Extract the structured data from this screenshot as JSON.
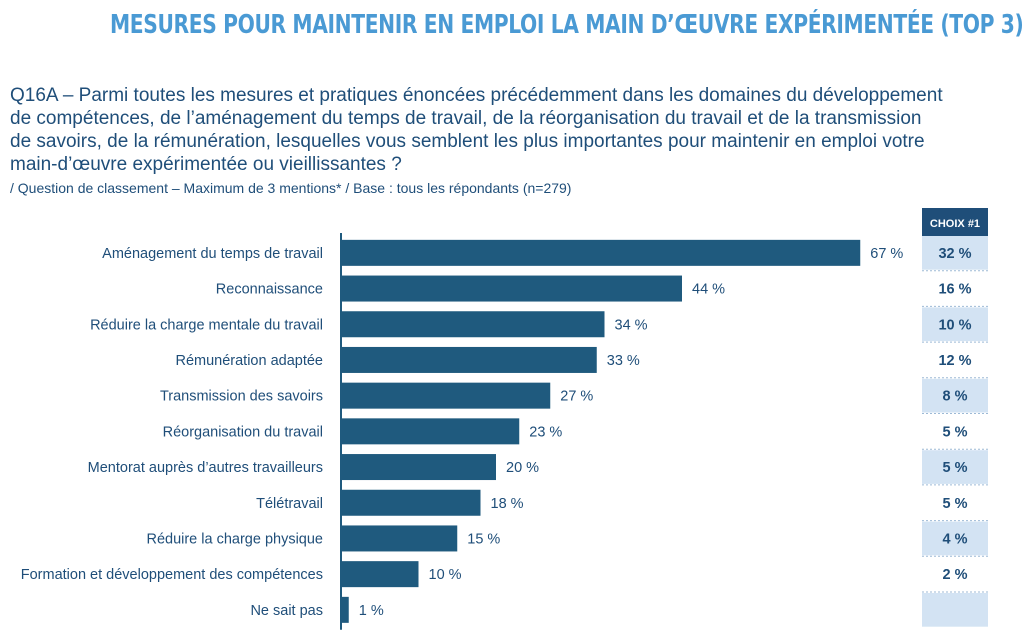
{
  "title": "MESURES POUR MAINTENIR EN EMPLOI LA MAIN D’ŒUVRE EXPÉRIMENTÉE (TOP 3)",
  "question": {
    "lines": [
      "Q16A – Parmi toutes les mesures et pratiques énoncées précédemment dans les domaines du développement",
      "de compétences, de l’aménagement du temps de travail, de la réorganisation du travail et de la transmission",
      "de savoirs, de la rémunération,  lesquelles vous semblent les plus importantes pour maintenir en emploi votre",
      "main-d’œuvre expérimentée ou vieillissantes ?"
    ],
    "note": "/ Question de classement – Maximum de 3 mentions* / Base : tous les répondants (n=279)"
  },
  "colors": {
    "bar": "#1f5a7e",
    "text": "#1f4e79",
    "header_bg": "#1f4e79",
    "choix_shade": "#d3e3f3"
  },
  "chart_data": {
    "type": "bar",
    "orientation": "horizontal",
    "value_unit": "%",
    "categories": [
      "Aménagement du temps de travail",
      "Reconnaissance",
      "Réduire la charge mentale du travail",
      "Rémunération adaptée",
      "Transmission des savoirs",
      "Réorganisation du travail",
      "Mentorat auprès d’autres travailleurs",
      "Télétravail",
      "Réduire la charge physique",
      "Formation et développement des compétences",
      "Ne sait pas"
    ],
    "values": [
      67,
      44,
      34,
      33,
      27,
      23,
      20,
      18,
      15,
      10,
      1
    ],
    "value_labels": [
      "67 %",
      "44 %",
      "34 %",
      "33 %",
      "27 %",
      "23 %",
      "20 %",
      "18 %",
      "15 %",
      "10 %",
      "1 %"
    ],
    "xlim": [
      0,
      100
    ],
    "secondary_column": {
      "header": "CHOIX #1",
      "labels": [
        "32 %",
        "16 %",
        "10 %",
        "12 %",
        "8 %",
        "5 %",
        "5 %",
        "5 %",
        "4 %",
        "2 %",
        ""
      ],
      "shaded": [
        true,
        false,
        true,
        false,
        true,
        false,
        true,
        false,
        true,
        false,
        true
      ]
    }
  }
}
